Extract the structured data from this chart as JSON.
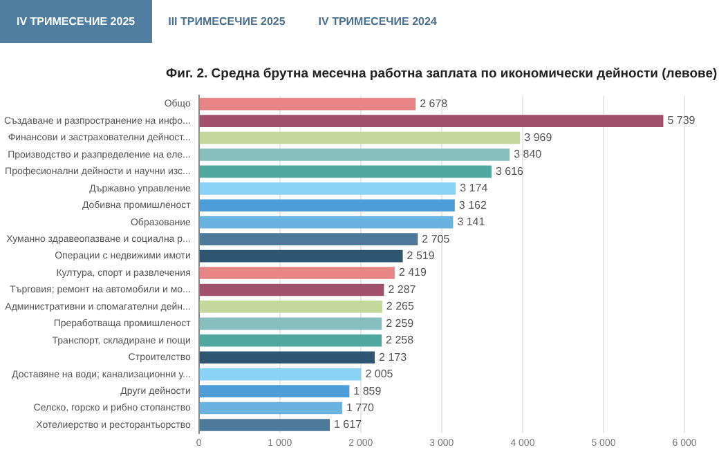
{
  "chart_data": {
    "type": "bar",
    "orientation": "horizontal",
    "title": "Фиг. 2. Средна брутна месечна работна заплата по икономически дейности (левове)",
    "annotations": [
      "IV ТРИМЕСЕЧИЕ 2025",
      "III ТРИМЕСЕЧИЕ 2025",
      "IV ТРИМЕСЕЧИЕ 2024"
    ],
    "categories": [
      "Общо",
      "Създаване и разпространение на инфо...",
      "Финансови и застрахователни дейност...",
      "Производство и разпределение на еле...",
      "Професионални дейности и научни изс...",
      "Държавно управление",
      "Добивна промишленост",
      "Образование",
      "Хуманно здравеопазване и социална р...",
      "Операции с недвижими имоти",
      "Култура, спорт и развлечения",
      "Търговия; ремонт на автомобили и мо...",
      "Административни и спомагателни дейн...",
      "Преработваща промишленост",
      "Транспорт, складиране и пощи",
      "Строителство",
      "Доставяне на води; канализационни у...",
      "Други дейности",
      "Селско, горско и рибно стопанство",
      "Хотелиерство и ресторантьорство"
    ],
    "values": [
      2678,
      5739,
      3969,
      3840,
      3616,
      3174,
      3162,
      3141,
      2705,
      2519,
      2419,
      2287,
      2265,
      2259,
      2258,
      2173,
      2005,
      1859,
      1770,
      1617
    ],
    "colors": [
      "#e88585",
      "#a0506a",
      "#c3d89a",
      "#86bdbe",
      "#4fa8a0",
      "#87d2f5",
      "#4d9ed8",
      "#69b3e0",
      "#4d7a9a",
      "#2f5670",
      "#e88585",
      "#a0506a",
      "#c3d89a",
      "#86bdbe",
      "#4fa8a0",
      "#2f5670",
      "#87d2f5",
      "#4d9ed8",
      "#69b3e0",
      "#4d7a9a"
    ],
    "value_labels": [
      "2 678",
      "5 739",
      "3 969",
      "3 840",
      "3 616",
      "3 174",
      "3 162",
      "3 141",
      "2 705",
      "2 519",
      "2 419",
      "2 287",
      "2 265",
      "2 259",
      "2 258",
      "2 173",
      "2 005",
      "1 859",
      "1 770",
      "1 617"
    ],
    "xlim": [
      0,
      6000
    ],
    "xticks": [
      {
        "value": 0,
        "label": "0"
      },
      {
        "value": 1000,
        "label": "1 000"
      },
      {
        "value": 2000,
        "label": "2 000"
      },
      {
        "value": 3000,
        "label": "3 000"
      },
      {
        "value": 4000,
        "label": "4 000"
      },
      {
        "value": 5000,
        "label": "5 000"
      },
      {
        "value": 6000,
        "label": "6 000"
      }
    ],
    "grid": "x",
    "legend": false
  }
}
